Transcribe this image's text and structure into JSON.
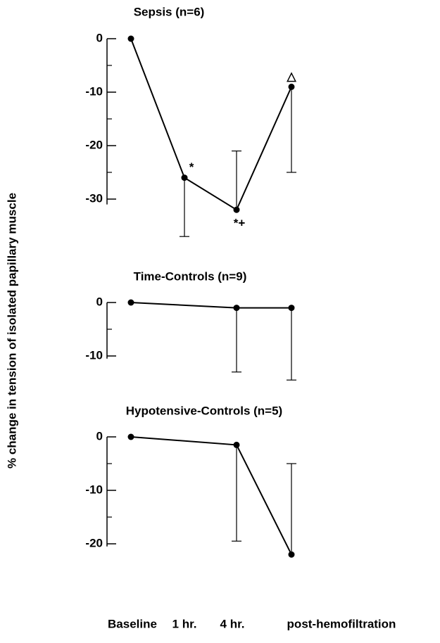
{
  "ylabel": "% change in tension of isolated papillary muscle",
  "categories": [
    "Baseline",
    "1 hr.",
    "4 hr.",
    "post-hemofiltration"
  ],
  "chart_data": [
    {
      "type": "line",
      "title": "Sepsis (n=6)",
      "color": "#000000",
      "values": [
        0,
        -26,
        -32,
        -9
      ],
      "errors": [
        null,
        11,
        11,
        16
      ],
      "error_sides": [
        null,
        "down",
        "up",
        "down"
      ],
      "annotations": [
        null,
        "*",
        "*+",
        "△"
      ],
      "ylim": [
        -31,
        0
      ],
      "yticks": [
        0,
        -10,
        -20,
        -30
      ]
    },
    {
      "type": "line",
      "title": "Time-Controls (n=9)",
      "color": "#000000",
      "values": [
        0,
        null,
        -1,
        -1
      ],
      "errors": [
        null,
        null,
        12,
        13.5
      ],
      "error_sides": [
        null,
        null,
        "down",
        "down"
      ],
      "ylim": [
        -10.5,
        0
      ],
      "yticks": [
        0,
        -10
      ]
    },
    {
      "type": "line",
      "title": "Hypotensive-Controls (n=5)",
      "color": "#000000",
      "values": [
        0,
        null,
        -1.5,
        -22
      ],
      "errors": [
        null,
        null,
        18,
        17
      ],
      "error_sides": [
        null,
        null,
        "down",
        "up"
      ],
      "ylim": [
        -20.5,
        0
      ],
      "yticks": [
        0,
        -10,
        -20
      ]
    }
  ]
}
